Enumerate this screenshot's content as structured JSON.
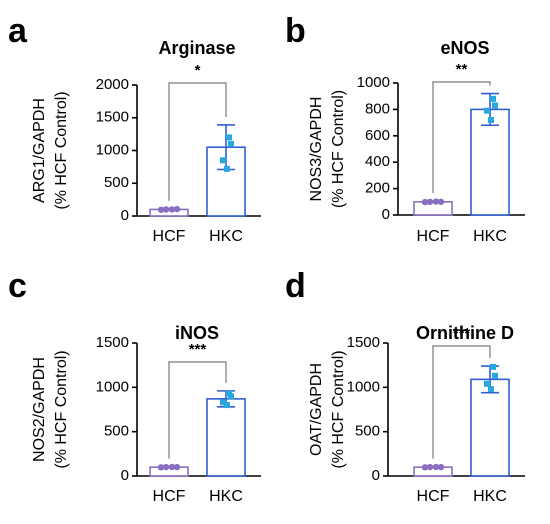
{
  "colors": {
    "hcf": "#8a6fc0",
    "hkc": "#2f5fd0",
    "hkc_points": "#29a8e0",
    "axis": "#000000"
  },
  "chart_data": [
    {
      "type": "bar",
      "panel": "a",
      "title": "Arginase",
      "ylabel": [
        "ARG1/GAPDH",
        "(% HCF Control)"
      ],
      "categories": [
        "HCF",
        "HKC"
      ],
      "values": [
        100,
        1050
      ],
      "errors": [
        8,
        340
      ],
      "points": [
        [
          95,
          100,
          100,
          105
        ],
        [
          1200,
          1100,
          850,
          720
        ]
      ],
      "ylim": [
        0,
        2000
      ],
      "yticks": [
        0,
        500,
        1000,
        1500,
        2000
      ],
      "significance": "*"
    },
    {
      "type": "bar",
      "panel": "b",
      "title": "eNOS",
      "ylabel": [
        "NOS3/GAPDH",
        "(% HCF Control)"
      ],
      "categories": [
        "HCF",
        "HKC"
      ],
      "values": [
        100,
        800
      ],
      "errors": [
        5,
        120
      ],
      "points": [
        [
          98,
          100,
          102,
          100
        ],
        [
          880,
          830,
          790,
          720
        ]
      ],
      "ylim": [
        0,
        1000
      ],
      "yticks": [
        0,
        200,
        400,
        600,
        800,
        1000
      ],
      "significance": "**"
    },
    {
      "type": "bar",
      "panel": "c",
      "title": "iNOS",
      "ylabel": [
        "NOS2/GAPDH",
        "(% HCF Control)"
      ],
      "categories": [
        "HCF",
        "HKC"
      ],
      "values": [
        100,
        870
      ],
      "errors": [
        6,
        90
      ],
      "points": [
        [
          98,
          100,
          102,
          100
        ],
        [
          930,
          900,
          830,
          800
        ]
      ],
      "ylim": [
        0,
        1500
      ],
      "yticks": [
        0,
        500,
        1000,
        1500
      ],
      "significance": "***"
    },
    {
      "type": "bar",
      "panel": "d",
      "title": "Ornithine D",
      "ylabel": [
        "OAT/GAPDH",
        "(% HCF Control)"
      ],
      "categories": [
        "HCF",
        "HKC"
      ],
      "values": [
        100,
        1090
      ],
      "errors": [
        6,
        150
      ],
      "points": [
        [
          98,
          100,
          102,
          100
        ],
        [
          1230,
          1130,
          1040,
          980
        ]
      ],
      "ylim": [
        0,
        1500
      ],
      "yticks": [
        0,
        500,
        1000,
        1500
      ],
      "significance": "***"
    }
  ]
}
